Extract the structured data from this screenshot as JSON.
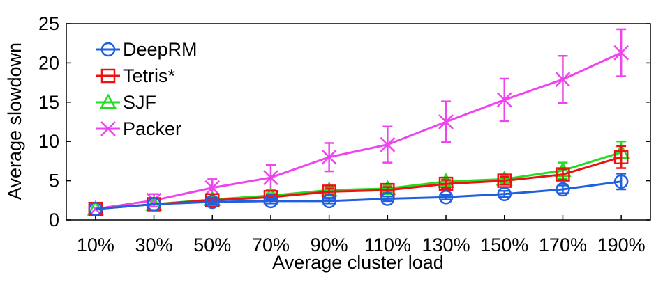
{
  "chart_data": {
    "type": "line",
    "title": "",
    "xlabel": "Average cluster load",
    "ylabel": "Average slowdown",
    "categories": [
      "10%",
      "30%",
      "50%",
      "70%",
      "90%",
      "110%",
      "130%",
      "150%",
      "170%",
      "190%"
    ],
    "ylim": [
      0,
      25
    ],
    "yticks": [
      0,
      5,
      10,
      15,
      20,
      25
    ],
    "grid": false,
    "legend_position": "top-left",
    "series": [
      {
        "name": "DeepRM",
        "color": "#1f5fe0",
        "marker": "circle",
        "values": [
          1.4,
          2.0,
          2.3,
          2.4,
          2.4,
          2.7,
          2.9,
          3.3,
          3.9,
          4.9
        ],
        "errors": [
          0,
          0,
          0.3,
          0.3,
          0.3,
          0.3,
          0.3,
          0.4,
          0.5,
          1.0
        ]
      },
      {
        "name": "Tetris*",
        "color": "#ee1111",
        "marker": "square",
        "values": [
          1.4,
          2.0,
          2.5,
          2.9,
          3.6,
          3.8,
          4.6,
          5.0,
          5.8,
          8.0
        ],
        "errors": [
          0,
          0,
          0.3,
          0.3,
          0.4,
          0.4,
          0.5,
          0.5,
          0.7,
          1.4
        ]
      },
      {
        "name": "SJF",
        "color": "#22dd22",
        "marker": "triangle",
        "values": [
          1.4,
          2.0,
          2.6,
          3.1,
          3.8,
          4.0,
          4.9,
          5.2,
          6.3,
          8.6
        ],
        "errors": [
          0,
          0,
          0.3,
          0.3,
          0.4,
          0.4,
          0.5,
          0.5,
          1.0,
          1.4
        ]
      },
      {
        "name": "Packer",
        "color": "#ee44ee",
        "marker": "x",
        "values": [
          1.4,
          2.5,
          4.1,
          5.4,
          8.0,
          9.6,
          12.5,
          15.3,
          17.9,
          21.3
        ],
        "errors": [
          0,
          0.8,
          1.1,
          1.6,
          1.8,
          2.3,
          2.6,
          2.7,
          3.0,
          3.0
        ]
      }
    ]
  }
}
